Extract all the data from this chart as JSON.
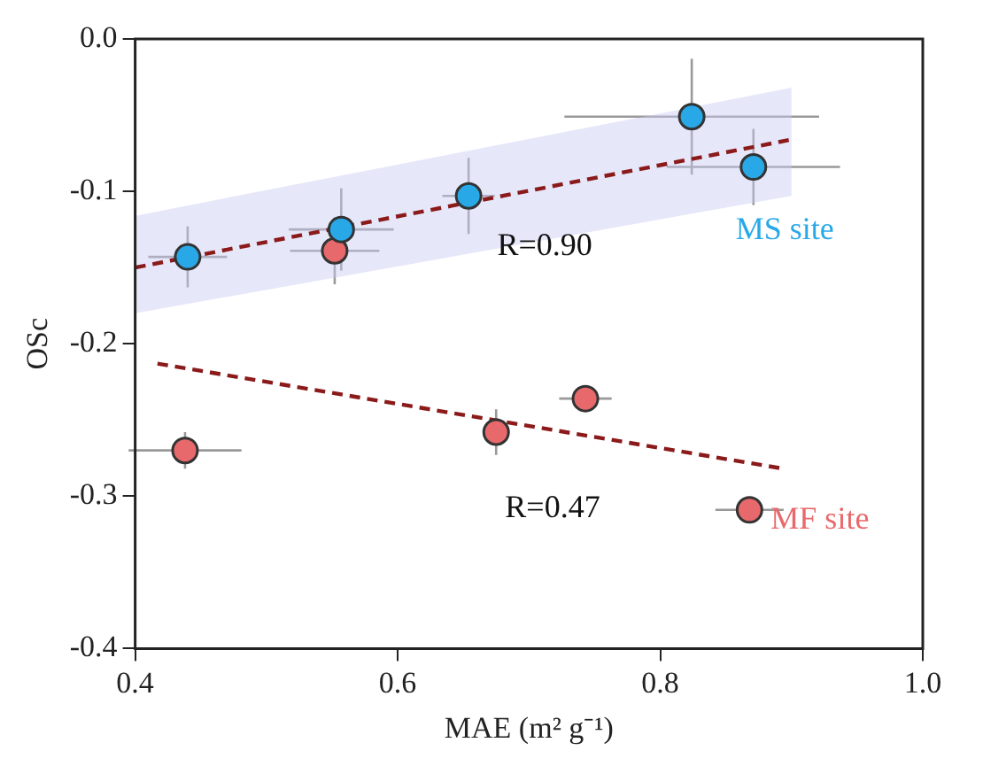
{
  "chart_data": {
    "type": "scatter",
    "xlabel": "MAE (m² g⁻¹)",
    "ylabel": "OSc",
    "xlim": [
      0.4,
      1.0
    ],
    "xticks": [
      0.4,
      0.6,
      0.8,
      {
        "value": 1.0,
        "label": "1.0"
      }
    ],
    "ylim": [
      -0.4,
      0.0
    ],
    "yticks": [
      -0.4,
      -0.3,
      -0.2,
      -0.1,
      {
        "value": 0.0,
        "label": "0.0"
      }
    ],
    "grid": false,
    "legend": false,
    "marker": "circle",
    "series": [
      {
        "name": "MS site",
        "color": "#29a8e8",
        "x": [
          0.44,
          0.557,
          0.654,
          0.824,
          0.871
        ],
        "values": [
          -0.143,
          -0.125,
          -0.103,
          -0.051,
          -0.084
        ],
        "errors": [
          0.02,
          0.027,
          0.025,
          0.038,
          0.025
        ],
        "xerrors": [
          0.03,
          0.04,
          0.02,
          0.097,
          0.066
        ]
      },
      {
        "name": "MF site",
        "color": "#e8696b",
        "x": [
          0.438,
          0.552,
          0.675,
          0.743,
          0.868
        ],
        "values": [
          -0.27,
          -0.139,
          -0.258,
          -0.236,
          -0.309
        ],
        "errors": [
          0.012,
          0.022,
          0.015,
          0.005,
          0.005
        ],
        "xerrors": [
          0.043,
          0.034,
          0.01,
          0.02,
          0.026
        ]
      },
      {
        "type": "line",
        "color": "#8b1a1a",
        "line_style": "dashed",
        "marker": "none",
        "x": [
          0.4,
          0.9
        ],
        "values": [
          -0.15,
          -0.066
        ],
        "lower": [
          -0.18,
          -0.103
        ],
        "upper": [
          -0.116,
          -0.032
        ]
      },
      {
        "type": "line",
        "color": "#8b1a1a",
        "line_style": "dashed",
        "marker": "none",
        "x": [
          0.417,
          0.894
        ],
        "values": [
          -0.213,
          -0.282
        ]
      }
    ],
    "annotations": [
      "R=0.90",
      "R=0.47"
    ]
  }
}
